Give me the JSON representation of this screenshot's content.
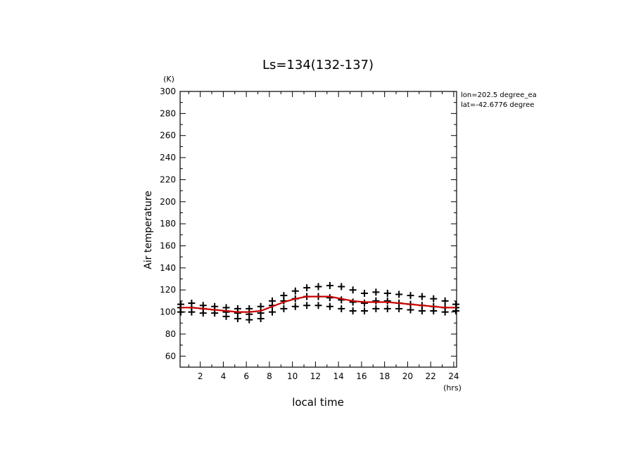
{
  "chart_data": {
    "type": "scatter",
    "title": "Ls=134(132-137)",
    "ylabel": "Air temperature",
    "yunit": "(K)",
    "xlabel": "local time",
    "xunit": "(hrs)",
    "annotations": [
      "lon=202.5 degree_ea",
      "lat=-42.6776 degree"
    ],
    "xlim": [
      0.25,
      24.25
    ],
    "ylim": [
      50,
      300
    ],
    "xticks": [
      2,
      4,
      6,
      8,
      10,
      12,
      14,
      16,
      18,
      20,
      22,
      24
    ],
    "yticks": [
      60,
      80,
      100,
      120,
      140,
      160,
      180,
      200,
      220,
      240,
      260,
      280,
      300
    ],
    "grid": false,
    "series": [
      {
        "kind": "scatter-plus",
        "color": "#000000",
        "points": [
          [
            0.25,
            100
          ],
          [
            0.25,
            104
          ],
          [
            0.25,
            107
          ],
          [
            1.25,
            100
          ],
          [
            1.25,
            104
          ],
          [
            1.25,
            108
          ],
          [
            2.25,
            99
          ],
          [
            2.25,
            103
          ],
          [
            2.25,
            106
          ],
          [
            3.25,
            99
          ],
          [
            3.25,
            102
          ],
          [
            3.25,
            105
          ],
          [
            4.25,
            96
          ],
          [
            4.25,
            100
          ],
          [
            4.25,
            104
          ],
          [
            5.25,
            94
          ],
          [
            5.25,
            99
          ],
          [
            5.25,
            103
          ],
          [
            6.25,
            93
          ],
          [
            6.25,
            98
          ],
          [
            6.25,
            103
          ],
          [
            7.25,
            94
          ],
          [
            7.25,
            99
          ],
          [
            7.25,
            105
          ],
          [
            8.25,
            100
          ],
          [
            8.25,
            106
          ],
          [
            8.25,
            110
          ],
          [
            9.25,
            103
          ],
          [
            9.25,
            110
          ],
          [
            9.25,
            115
          ],
          [
            10.25,
            105
          ],
          [
            10.25,
            112
          ],
          [
            10.25,
            119
          ],
          [
            11.25,
            106
          ],
          [
            11.25,
            114
          ],
          [
            11.25,
            122
          ],
          [
            12.25,
            106
          ],
          [
            12.25,
            114
          ],
          [
            12.25,
            123
          ],
          [
            13.25,
            105
          ],
          [
            13.25,
            113
          ],
          [
            13.25,
            124
          ],
          [
            14.25,
            103
          ],
          [
            14.25,
            111
          ],
          [
            14.25,
            123
          ],
          [
            15.25,
            101
          ],
          [
            15.25,
            109
          ],
          [
            15.25,
            120
          ],
          [
            16.25,
            101
          ],
          [
            16.25,
            108
          ],
          [
            16.25,
            117
          ],
          [
            17.25,
            103
          ],
          [
            17.25,
            110
          ],
          [
            17.25,
            118
          ],
          [
            18.25,
            103
          ],
          [
            18.25,
            110
          ],
          [
            18.25,
            117
          ],
          [
            19.25,
            103
          ],
          [
            19.25,
            108
          ],
          [
            19.25,
            116
          ],
          [
            20.25,
            102
          ],
          [
            20.25,
            107
          ],
          [
            20.25,
            115
          ],
          [
            21.25,
            101
          ],
          [
            21.25,
            106
          ],
          [
            21.25,
            114
          ],
          [
            22.25,
            101
          ],
          [
            22.25,
            105
          ],
          [
            22.25,
            112
          ],
          [
            23.25,
            100
          ],
          [
            23.25,
            104
          ],
          [
            23.25,
            110
          ],
          [
            24.25,
            101
          ],
          [
            24.25,
            104
          ],
          [
            24.25,
            107
          ]
        ]
      },
      {
        "kind": "line",
        "color": "#cc0000",
        "x": [
          0.25,
          1.25,
          2.25,
          3.25,
          4.25,
          5.25,
          6.25,
          7.25,
          8.25,
          9.25,
          10.25,
          11.25,
          12.25,
          13.25,
          14.25,
          15.25,
          16.25,
          17.25,
          18.25,
          19.25,
          20.25,
          21.25,
          22.25,
          23.25,
          24.25
        ],
        "y": [
          104,
          104,
          103,
          102,
          101,
          100,
          100,
          101,
          105,
          109,
          112,
          114,
          114,
          114,
          112,
          110,
          109,
          109,
          109,
          108,
          107,
          106,
          105,
          104,
          104
        ]
      }
    ]
  }
}
